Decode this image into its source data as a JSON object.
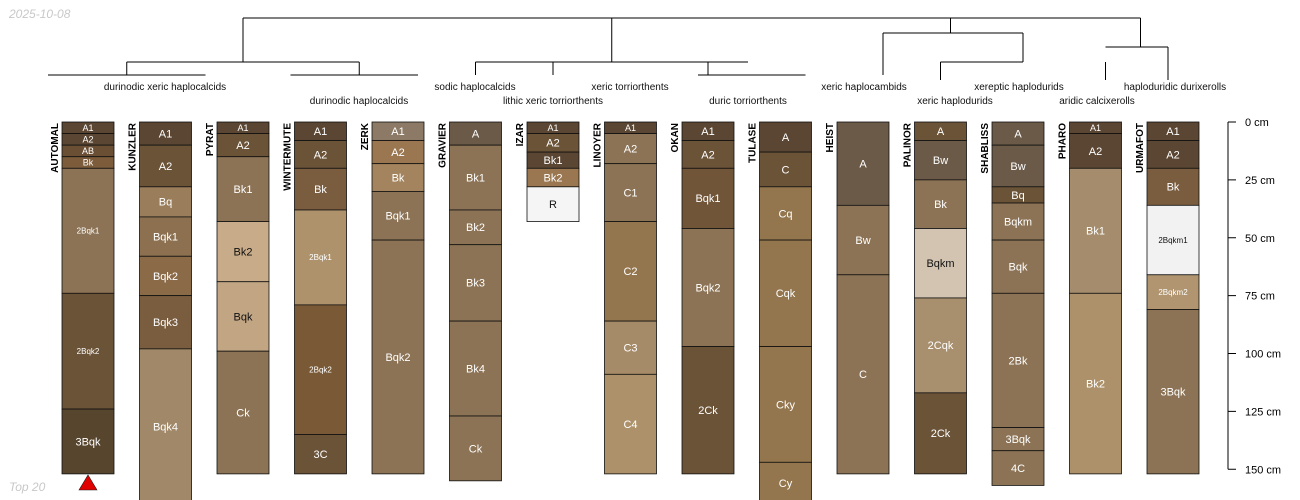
{
  "date": "2025-10-08",
  "footer": "Top 20",
  "chart_data": {
    "type": "soil-profile-sketch-with-dendrogram",
    "depth_unit": "cm",
    "depth_ticks": [
      0,
      25,
      50,
      75,
      100,
      125,
      150
    ],
    "depth_tick_labels": [
      "0 cm",
      "25 cm",
      "50 cm",
      "75 cm",
      "100 cm",
      "125 cm",
      "150 cm"
    ],
    "max_depth": 165,
    "profiles": [
      {
        "name": "AUTOMAL",
        "flag": true,
        "horizons": [
          {
            "name": "A1",
            "top": 0,
            "bottom": 5,
            "color": "#5a4632"
          },
          {
            "name": "A2",
            "top": 5,
            "bottom": 10,
            "color": "#5a4632"
          },
          {
            "name": "AB",
            "top": 10,
            "bottom": 15,
            "color": "#6b4f35"
          },
          {
            "name": "Bk",
            "top": 15,
            "bottom": 20,
            "color": "#7c5c3a"
          },
          {
            "name": "2Bqk1",
            "top": 20,
            "bottom": 74,
            "color": "#8c7355"
          },
          {
            "name": "2Bqk2",
            "top": 74,
            "bottom": 124,
            "color": "#6b5338"
          },
          {
            "name": "3Bqk",
            "top": 124,
            "bottom": 152,
            "color": "#58452e"
          }
        ]
      },
      {
        "name": "KUNZLER",
        "horizons": [
          {
            "name": "A1",
            "top": 0,
            "bottom": 10,
            "color": "#5a4632"
          },
          {
            "name": "A2",
            "top": 10,
            "bottom": 28,
            "color": "#6b5338"
          },
          {
            "name": "Bq",
            "top": 28,
            "bottom": 41,
            "color": "#9a7d5a"
          },
          {
            "name": "Bqk1",
            "top": 41,
            "bottom": 58,
            "color": "#8c7050"
          },
          {
            "name": "Bqk2",
            "top": 58,
            "bottom": 75,
            "color": "#8a6a47"
          },
          {
            "name": "Bqk3",
            "top": 75,
            "bottom": 98,
            "color": "#7a5c3e"
          },
          {
            "name": "Bqk4",
            "top": 98,
            "bottom": 165,
            "color": "#a08868"
          }
        ]
      },
      {
        "name": "PYRAT",
        "horizons": [
          {
            "name": "A1",
            "top": 0,
            "bottom": 5,
            "color": "#5a4632"
          },
          {
            "name": "A2",
            "top": 5,
            "bottom": 15,
            "color": "#6b5338"
          },
          {
            "name": "Bk1",
            "top": 15,
            "bottom": 43,
            "color": "#8c7355"
          },
          {
            "name": "Bk2",
            "top": 43,
            "bottom": 69,
            "color": "#c8ab88"
          },
          {
            "name": "Bqk",
            "top": 69,
            "bottom": 99,
            "color": "#c2a684"
          },
          {
            "name": "Ck",
            "top": 99,
            "bottom": 152,
            "color": "#8c7355"
          }
        ]
      },
      {
        "name": "WINTERMUTE",
        "horizons": [
          {
            "name": "A1",
            "top": 0,
            "bottom": 8,
            "color": "#5a4632"
          },
          {
            "name": "A2",
            "top": 8,
            "bottom": 20,
            "color": "#6b5338"
          },
          {
            "name": "Bk",
            "top": 20,
            "bottom": 38,
            "color": "#7a5c3e"
          },
          {
            "name": "2Bqk1",
            "top": 38,
            "bottom": 79,
            "color": "#ad926c"
          },
          {
            "name": "2Bqk2",
            "top": 79,
            "bottom": 135,
            "color": "#7a5a36"
          },
          {
            "name": "3C",
            "top": 135,
            "bottom": 152,
            "color": "#6b5338"
          }
        ]
      },
      {
        "name": "ZERK",
        "horizons": [
          {
            "name": "A1",
            "top": 0,
            "bottom": 8,
            "color": "#8c7a66"
          },
          {
            "name": "A2",
            "top": 8,
            "bottom": 18,
            "color": "#9a7750"
          },
          {
            "name": "Bk",
            "top": 18,
            "bottom": 30,
            "color": "#a4845e"
          },
          {
            "name": "Bqk1",
            "top": 30,
            "bottom": 51,
            "color": "#8c7355"
          },
          {
            "name": "Bqk2",
            "top": 51,
            "bottom": 152,
            "color": "#8c7355"
          }
        ]
      },
      {
        "name": "GRAVIER",
        "horizons": [
          {
            "name": "A",
            "top": 0,
            "bottom": 10,
            "color": "#6b5a48"
          },
          {
            "name": "Bk1",
            "top": 10,
            "bottom": 38,
            "color": "#8c7355"
          },
          {
            "name": "Bk2",
            "top": 38,
            "bottom": 53,
            "color": "#8c7355"
          },
          {
            "name": "Bk3",
            "top": 53,
            "bottom": 86,
            "color": "#8c7355"
          },
          {
            "name": "Bk4",
            "top": 86,
            "bottom": 127,
            "color": "#8c7355"
          },
          {
            "name": "Ck",
            "top": 127,
            "bottom": 155,
            "color": "#8c7355"
          }
        ]
      },
      {
        "name": "IZAR",
        "horizons": [
          {
            "name": "A1",
            "top": 0,
            "bottom": 5,
            "color": "#5a4632"
          },
          {
            "name": "A2",
            "top": 5,
            "bottom": 13,
            "color": "#6b5338"
          },
          {
            "name": "Bk1",
            "top": 13,
            "bottom": 20,
            "color": "#5a4632"
          },
          {
            "name": "Bk2",
            "top": 20,
            "bottom": 28,
            "color": "#9a7750"
          },
          {
            "name": "R",
            "top": 28,
            "bottom": 43,
            "color": "#f5f5f5"
          }
        ]
      },
      {
        "name": "LINOYER",
        "horizons": [
          {
            "name": "A1",
            "top": 0,
            "bottom": 5,
            "color": "#5a4632"
          },
          {
            "name": "A2",
            "top": 5,
            "bottom": 18,
            "color": "#8c7355"
          },
          {
            "name": "C1",
            "top": 18,
            "bottom": 43,
            "color": "#8c7355"
          },
          {
            "name": "C2",
            "top": 43,
            "bottom": 86,
            "color": "#94764e"
          },
          {
            "name": "C3",
            "top": 86,
            "bottom": 109,
            "color": "#a58b67"
          },
          {
            "name": "C4",
            "top": 109,
            "bottom": 152,
            "color": "#ad916a"
          }
        ]
      },
      {
        "name": "OKAN",
        "horizons": [
          {
            "name": "A1",
            "top": 0,
            "bottom": 8,
            "color": "#5a4632"
          },
          {
            "name": "A2",
            "top": 8,
            "bottom": 20,
            "color": "#6b5338"
          },
          {
            "name": "Bqk1",
            "top": 20,
            "bottom": 46,
            "color": "#705539"
          },
          {
            "name": "Bqk2",
            "top": 46,
            "bottom": 97,
            "color": "#8c7355"
          },
          {
            "name": "2Ck",
            "top": 97,
            "bottom": 152,
            "color": "#6b5338"
          }
        ]
      },
      {
        "name": "TULASE",
        "horizons": [
          {
            "name": "A",
            "top": 0,
            "bottom": 13,
            "color": "#5a4632"
          },
          {
            "name": "C",
            "top": 13,
            "bottom": 28,
            "color": "#6b5338"
          },
          {
            "name": "Cq",
            "top": 28,
            "bottom": 51,
            "color": "#94764e"
          },
          {
            "name": "Cqk",
            "top": 51,
            "bottom": 97,
            "color": "#94764e"
          },
          {
            "name": "Cky",
            "top": 97,
            "bottom": 147,
            "color": "#94764e"
          },
          {
            "name": "Cy",
            "top": 147,
            "bottom": 165,
            "color": "#94764e"
          }
        ]
      },
      {
        "name": "HEIST",
        "horizons": [
          {
            "name": "A",
            "top": 0,
            "bottom": 36,
            "color": "#6b5a48"
          },
          {
            "name": "Bw",
            "top": 36,
            "bottom": 66,
            "color": "#8c7355"
          },
          {
            "name": "C",
            "top": 66,
            "bottom": 152,
            "color": "#8c7355"
          }
        ]
      },
      {
        "name": "PALINOR",
        "horizons": [
          {
            "name": "A",
            "top": 0,
            "bottom": 8,
            "color": "#6b5338"
          },
          {
            "name": "Bw",
            "top": 8,
            "bottom": 25,
            "color": "#6b5a48"
          },
          {
            "name": "Bk",
            "top": 25,
            "bottom": 46,
            "color": "#8c7355"
          },
          {
            "name": "Bqkm",
            "top": 46,
            "bottom": 76,
            "color": "#d2c4b0"
          },
          {
            "name": "2Cqk",
            "top": 76,
            "bottom": 117,
            "color": "#a8906f"
          },
          {
            "name": "2Ck",
            "top": 117,
            "bottom": 152,
            "color": "#6b5338"
          }
        ]
      },
      {
        "name": "SHABLISS",
        "horizons": [
          {
            "name": "A",
            "top": 0,
            "bottom": 10,
            "color": "#6b5a48"
          },
          {
            "name": "Bw",
            "top": 10,
            "bottom": 28,
            "color": "#6b5a48"
          },
          {
            "name": "Bq",
            "top": 28,
            "bottom": 35,
            "color": "#6b5338"
          },
          {
            "name": "Bqkm",
            "top": 35,
            "bottom": 51,
            "color": "#8c7355"
          },
          {
            "name": "Bqk",
            "top": 51,
            "bottom": 74,
            "color": "#8c7355"
          },
          {
            "name": "2Bk",
            "top": 74,
            "bottom": 132,
            "color": "#8c7355"
          },
          {
            "name": "3Bqk",
            "top": 132,
            "bottom": 142,
            "color": "#8c7355"
          },
          {
            "name": "4C",
            "top": 142,
            "bottom": 157,
            "color": "#8c7355"
          }
        ]
      },
      {
        "name": "PHARO",
        "horizons": [
          {
            "name": "A1",
            "top": 0,
            "bottom": 5,
            "color": "#5a4632"
          },
          {
            "name": "A2",
            "top": 5,
            "bottom": 20,
            "color": "#5a4632"
          },
          {
            "name": "Bk1",
            "top": 20,
            "bottom": 74,
            "color": "#a48c6c"
          },
          {
            "name": "Bk2",
            "top": 74,
            "bottom": 152,
            "color": "#ad916a"
          }
        ]
      },
      {
        "name": "URMAFOT",
        "horizons": [
          {
            "name": "A1",
            "top": 0,
            "bottom": 8,
            "color": "#5a4632"
          },
          {
            "name": "A2",
            "top": 8,
            "bottom": 20,
            "color": "#5a4632"
          },
          {
            "name": "Bk",
            "top": 20,
            "bottom": 36,
            "color": "#7a5c3e"
          },
          {
            "name": "2Bqkm1",
            "top": 36,
            "bottom": 66,
            "color": "#f2f2f2"
          },
          {
            "name": "2Bqkm2",
            "top": 66,
            "bottom": 81,
            "color": "#b09570"
          },
          {
            "name": "3Bqk",
            "top": 81,
            "bottom": 152,
            "color": "#8c7355"
          }
        ]
      }
    ],
    "taxonomy_labels": [
      {
        "text": "durinodic xeric haplocalcids",
        "profiles": [
          0,
          1
        ]
      },
      {
        "text": "durinodic haplocalcids",
        "profiles": [
          3,
          4
        ]
      },
      {
        "text": "sodic haplocalcids",
        "profiles": [
          5
        ]
      },
      {
        "text": "lithic xeric torriorthents",
        "profiles": [
          6
        ]
      },
      {
        "text": "xeric torriorthents",
        "profiles": [
          7
        ]
      },
      {
        "text": "duric torriorthents",
        "profiles": [
          8,
          9
        ]
      },
      {
        "text": "xeric haplocambids",
        "profiles": [
          10
        ]
      },
      {
        "text": "xeric haplodurids",
        "profiles": [
          11
        ]
      },
      {
        "text": "xereptic haplodurids",
        "profiles": [
          12
        ]
      },
      {
        "text": "aridic calcixerolls",
        "profiles": [
          13
        ]
      },
      {
        "text": "haploduridic durixerolls",
        "profiles": [
          14
        ]
      }
    ]
  }
}
